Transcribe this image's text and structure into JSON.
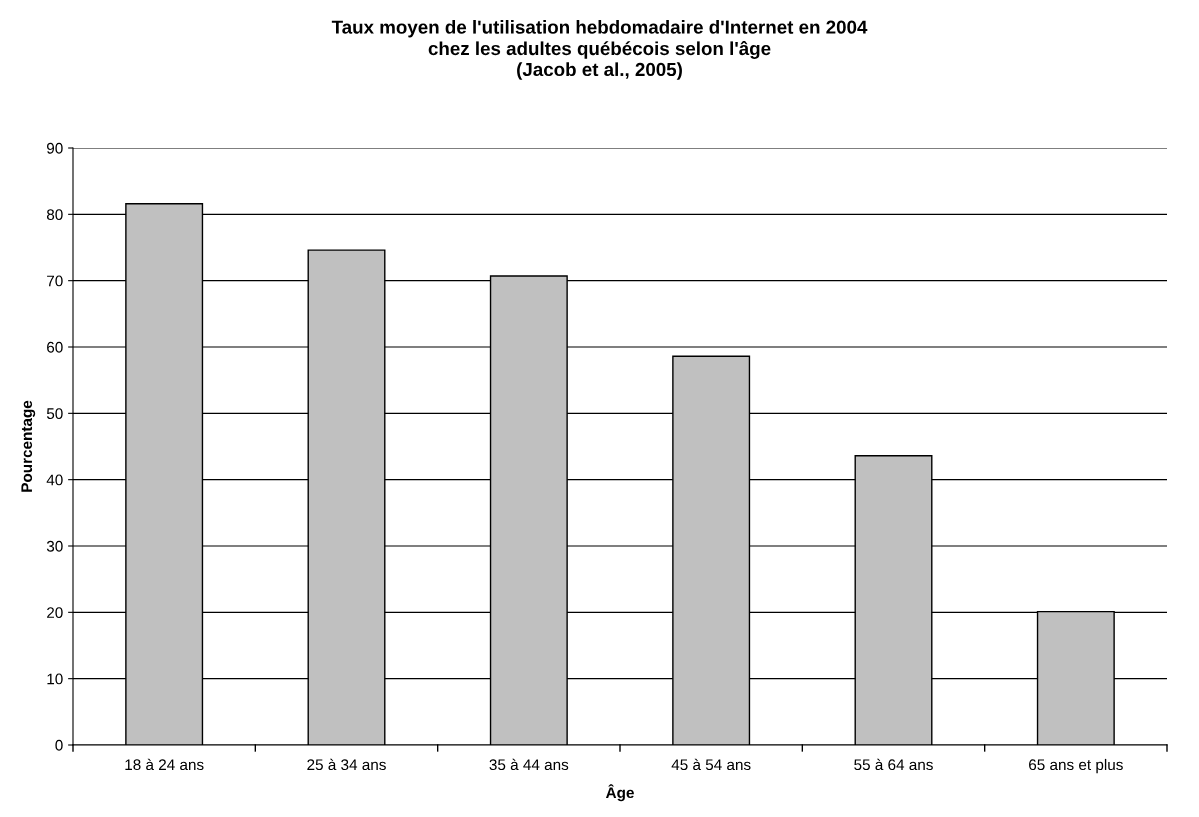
{
  "chart_data": {
    "type": "bar",
    "title": "Taux moyen de l'utilisation hebdomadaire d'Internet en 2004\nchez les adultes québécois selon l'âge\n(Jacob et al., 2005)",
    "xlabel": "Âge",
    "ylabel": "Pourcentage",
    "categories": [
      "18 à 24 ans",
      "25 à 34 ans",
      "35 à 44 ans",
      "45 à 54 ans",
      "55 à 64 ans",
      "65 ans et plus"
    ],
    "values": [
      81.6,
      74.6,
      70.7,
      58.6,
      43.6,
      20.1
    ],
    "color": "#c0c0c0",
    "ylim": [
      0,
      90
    ],
    "yticks": [
      0,
      10,
      20,
      30,
      40,
      50,
      60,
      70,
      80,
      90
    ],
    "grid": "y",
    "legend": false
  }
}
